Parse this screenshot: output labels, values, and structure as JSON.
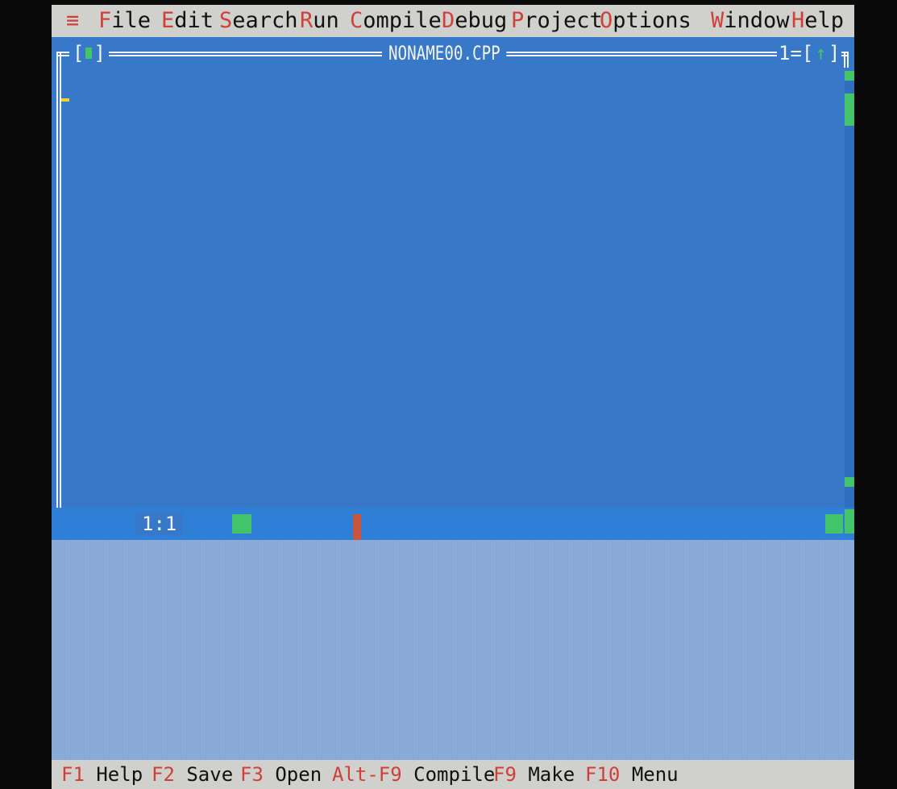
{
  "menubar": {
    "system_icon": "≡",
    "items": [
      {
        "hot": "F",
        "rest": "ile"
      },
      {
        "hot": "E",
        "rest": "dit"
      },
      {
        "hot": "S",
        "rest": "earch"
      },
      {
        "hot": "R",
        "rest": "un"
      },
      {
        "hot": "C",
        "rest": "ompile"
      },
      {
        "hot": "D",
        "rest": "ebug"
      },
      {
        "hot": "P",
        "rest": "roject"
      },
      {
        "hot": "O",
        "rest": "ptions"
      },
      {
        "hot": "W",
        "rest": "indow"
      },
      {
        "hot": "H",
        "rest": "elp"
      }
    ]
  },
  "editor": {
    "title": "NONAME00.CPP",
    "window_number": "1",
    "position": "1:1"
  },
  "statusbar": {
    "hints": [
      {
        "key": "F1",
        "label": "Help"
      },
      {
        "key": "F2",
        "label": "Save"
      },
      {
        "key": "F3",
        "label": "Open"
      },
      {
        "key": "Alt-F9",
        "label": "Compile"
      },
      {
        "key": "F9",
        "label": "Make"
      },
      {
        "key": "F10",
        "label": "Menu"
      }
    ]
  },
  "colors": {
    "menu_bg": "#d0d0cc",
    "hotkey": "#d0403a",
    "editor_bg": "#3778c8",
    "desktop_bg": "#88a9d6",
    "scroll_green": "#43c46a"
  }
}
